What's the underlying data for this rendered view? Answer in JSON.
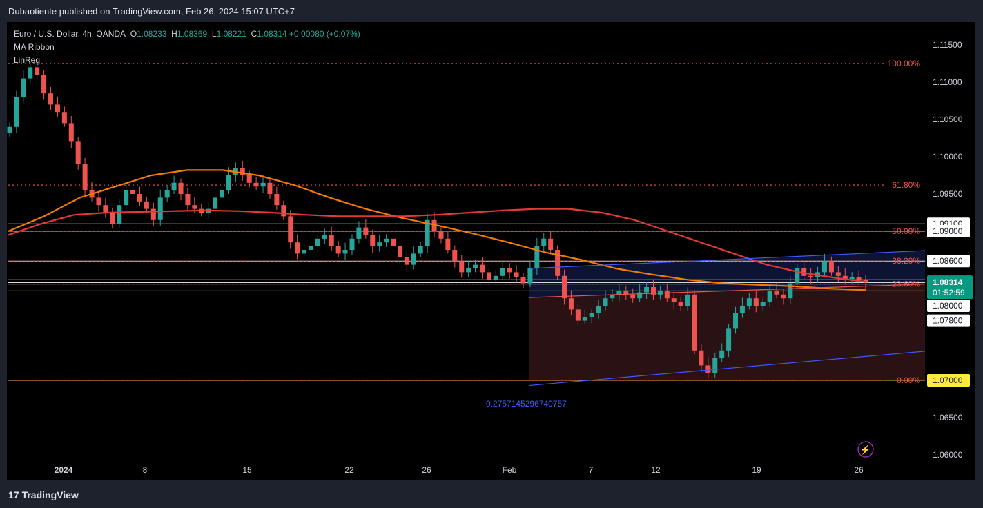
{
  "header": {
    "published": "Dubaotiente published on TradingView.com, Feb 26, 2024 15:07 UTC+7"
  },
  "legend": {
    "symbol": "Euro / U.S. Dollar, 4h, OANDA",
    "o_label": "O",
    "o_value": "1.08233",
    "h_label": "H",
    "h_value": "1.08369",
    "l_label": "L",
    "l_value": "1.08221",
    "c_label": "C",
    "c_value": "1.08314",
    "change": "+0.00080 (+0.07%)",
    "indicator1": "MA Ribbon",
    "indicator2": "LinReg"
  },
  "footer": {
    "brand": "TradingView"
  },
  "chart_data": {
    "type": "candlestick",
    "ylim": [
      1.0575,
      1.1175
    ],
    "y_ticks": [
      "1.11500",
      "1.11000",
      "1.10500",
      "1.10000",
      "1.09500",
      "1.06500",
      "1.06000"
    ],
    "x_ticks": [
      "2024",
      "8",
      "15",
      "22",
      "26",
      "Feb",
      "7",
      "12",
      "19",
      "26"
    ],
    "price_levels": [
      "1.09100",
      "1.09000",
      "1.08600",
      "1.08300",
      "1.08200",
      "1.08000",
      "1.07800",
      "1.07000"
    ],
    "highlighted_levels": [
      "1.08200",
      "1.07000"
    ],
    "last_price": {
      "value": "1.08314",
      "countdown": "01:52:59"
    },
    "fibonacci": [
      {
        "label": "100.00%",
        "value": 1.1125
      },
      {
        "label": "61.80%",
        "value": 1.0962
      },
      {
        "label": "50.00%",
        "value": 1.09
      },
      {
        "label": "38.20%",
        "value": 1.086
      },
      {
        "label": "23.60%",
        "value": 1.0829
      },
      {
        "label": "0.00%",
        "value": 1.07
      }
    ],
    "linreg_label": "0.2757145296740757",
    "close_series": [
      1.104,
      1.108,
      1.1105,
      1.112,
      1.111,
      1.1085,
      1.107,
      1.106,
      1.1045,
      1.102,
      1.099,
      1.0955,
      1.0945,
      1.0935,
      1.0925,
      1.091,
      1.0935,
      1.0955,
      1.095,
      1.094,
      1.093,
      1.0915,
      1.0945,
      1.0955,
      1.0965,
      1.095,
      1.0935,
      1.093,
      1.0925,
      1.093,
      1.0945,
      1.0955,
      1.0975,
      1.0985,
      1.0975,
      1.0965,
      1.096,
      1.0965,
      1.095,
      1.0935,
      1.092,
      1.0885,
      1.087,
      1.0875,
      1.088,
      1.089,
      1.0895,
      1.088,
      1.087,
      1.0875,
      1.089,
      1.0905,
      1.0895,
      1.088,
      1.0885,
      1.089,
      1.088,
      1.0865,
      1.0855,
      1.087,
      1.088,
      1.0915,
      1.09,
      1.089,
      1.0875,
      1.086,
      1.0845,
      1.085,
      1.0855,
      1.0845,
      1.0835,
      1.084,
      1.085,
      1.0845,
      1.0838,
      1.083,
      1.085,
      1.088,
      1.089,
      1.0875,
      1.084,
      1.081,
      1.0795,
      1.078,
      1.0785,
      1.079,
      1.08,
      1.081,
      1.0815,
      1.082,
      1.0815,
      1.081,
      1.0818,
      1.0825,
      1.0815,
      1.082,
      1.081,
      1.0805,
      1.08,
      1.0815,
      1.074,
      1.072,
      1.071,
      1.073,
      1.074,
      1.077,
      1.079,
      1.08,
      1.081,
      1.08,
      1.0805,
      1.082,
      1.0815,
      1.081,
      1.083,
      1.085,
      1.084,
      1.0838,
      1.0845,
      1.086,
      1.0845,
      1.084,
      1.0836,
      1.0838,
      1.0835,
      1.0831
    ],
    "series": [
      {
        "name": "MA Ribbon",
        "color": "#f57c00",
        "values": [
          1.09,
          1.092,
          1.0945,
          1.096,
          1.0975,
          1.0982,
          1.0982,
          1.0975,
          1.0962,
          1.0945,
          1.093,
          1.0918,
          1.0908,
          1.0897,
          1.0885,
          1.0872,
          1.0862,
          1.085,
          1.0842,
          1.0835,
          1.083,
          1.0828,
          1.0826,
          1.0823,
          1.0821
        ]
      },
      {
        "name": "MA Ribbon",
        "color": "#e53935",
        "values": [
          1.0895,
          1.091,
          1.0922,
          1.0925,
          1.0926,
          1.0927,
          1.0928,
          1.0927,
          1.0925,
          1.0922,
          1.092,
          1.092,
          1.092,
          1.0922,
          1.0925,
          1.0928,
          1.093,
          1.093,
          1.0925,
          1.0915,
          1.09,
          1.0885,
          1.087,
          1.0855,
          1.0845,
          1.0838,
          1.0832
        ]
      }
    ]
  }
}
